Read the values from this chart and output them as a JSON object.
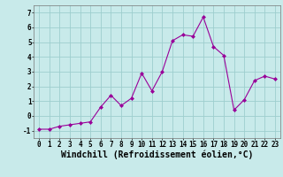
{
  "x": [
    0,
    1,
    2,
    3,
    4,
    5,
    6,
    7,
    8,
    9,
    10,
    11,
    12,
    13,
    14,
    15,
    16,
    17,
    18,
    19,
    20,
    21,
    22,
    23
  ],
  "y": [
    -0.9,
    -0.9,
    -0.7,
    -0.6,
    -0.5,
    -0.4,
    0.6,
    1.4,
    0.7,
    1.2,
    2.9,
    1.7,
    3.0,
    5.1,
    5.5,
    5.4,
    6.7,
    4.7,
    4.1,
    0.4,
    1.1,
    2.4,
    2.7,
    2.5
  ],
  "line_color": "#990099",
  "marker": "D",
  "marker_size": 2,
  "bg_color": "#c8eaea",
  "grid_color": "#9ecece",
  "xlabel": "Windchill (Refroidissement éolien,°C)",
  "ylim": [
    -1.5,
    7.5
  ],
  "xlim": [
    -0.5,
    23.5
  ],
  "xticks": [
    0,
    1,
    2,
    3,
    4,
    5,
    6,
    7,
    8,
    9,
    10,
    11,
    12,
    13,
    14,
    15,
    16,
    17,
    18,
    19,
    20,
    21,
    22,
    23
  ],
  "yticks": [
    -1,
    0,
    1,
    2,
    3,
    4,
    5,
    6,
    7
  ],
  "tick_fontsize": 5.5,
  "xlabel_fontsize": 7.0,
  "xlabel_fontweight": "bold",
  "line_width": 0.8
}
